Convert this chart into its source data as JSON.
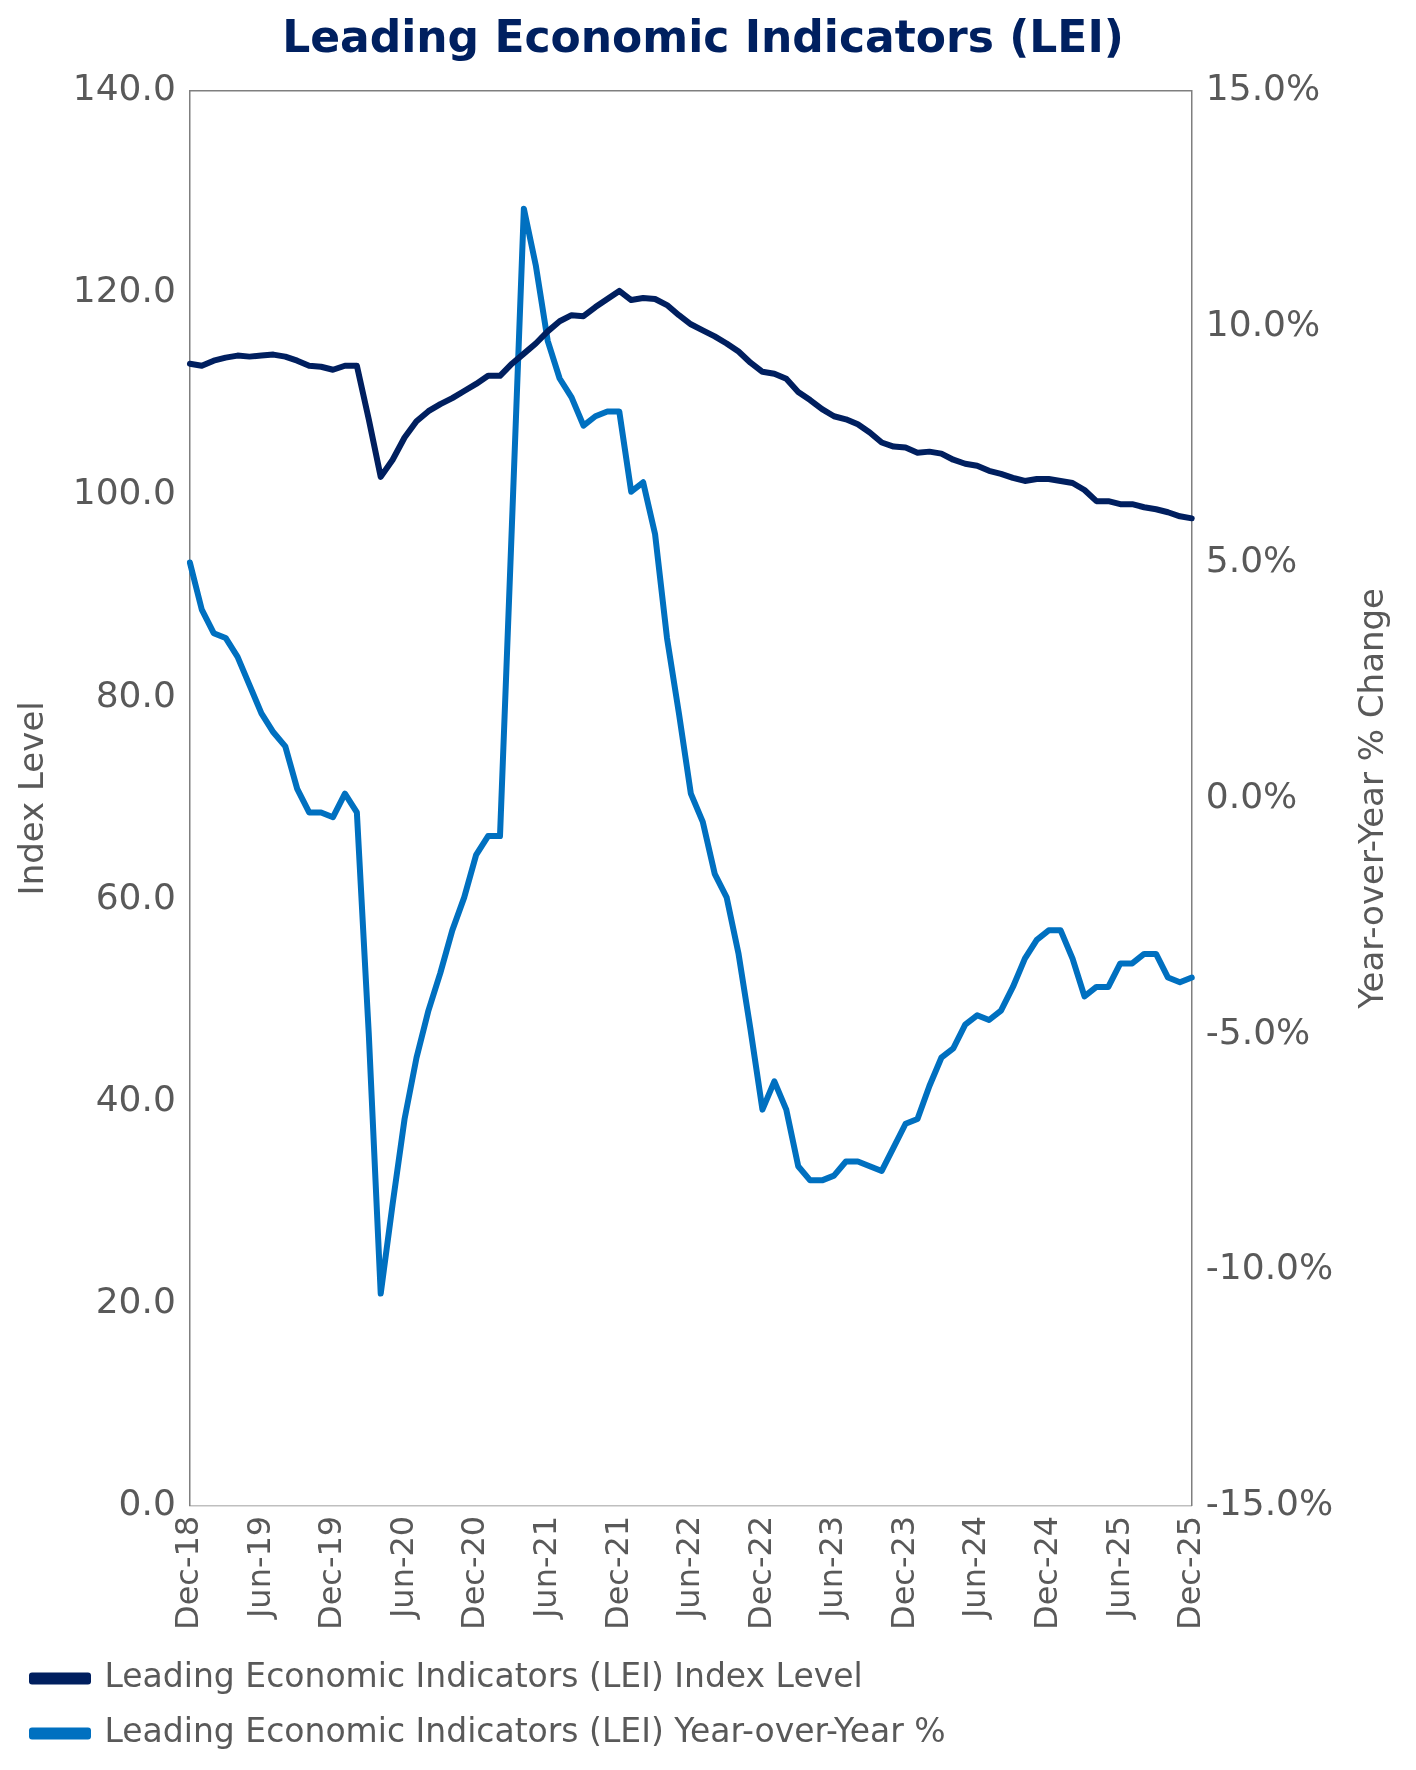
{
  "chart_data": {
    "type": "line",
    "title": "Leading Economic Indicators (LEI)",
    "ylabel": "Index Level",
    "y2label": "Year-over-Year % Change",
    "categories": [
      "Dec-18",
      null,
      null,
      null,
      null,
      null,
      "Jun-19",
      null,
      null,
      null,
      null,
      null,
      "Dec-19",
      null,
      null,
      null,
      null,
      null,
      "Jun-20",
      null,
      null,
      null,
      null,
      null,
      "Dec-20",
      null,
      null,
      null,
      null,
      null,
      "Jun-21",
      null,
      null,
      null,
      null,
      null,
      "Dec-21",
      null,
      null,
      null,
      null,
      null,
      "Jun-22",
      null,
      null,
      null,
      null,
      null,
      "Dec-22",
      null,
      null,
      null,
      null,
      null,
      "Jun-23",
      null,
      null,
      null,
      null,
      null,
      "Dec-23",
      null,
      null,
      null,
      null,
      null,
      "Jun-24",
      null,
      null,
      null,
      null,
      null,
      "Dec-24",
      null,
      null,
      null,
      null,
      null,
      "Jun-25",
      null,
      null,
      null,
      null,
      null,
      "Dec-25"
    ],
    "series": [
      {
        "name": "Leading Economic Indicators (LEI) Index Level",
        "color": "#001f5f",
        "values": [
          113.0,
          112.8,
          113.3,
          113.6,
          113.8,
          113.7,
          113.8,
          113.9,
          113.7,
          113.3,
          112.8,
          112.7,
          112.4,
          112.8,
          112.8,
          107.5,
          101.8,
          103.5,
          105.7,
          107.3,
          108.3,
          109.0,
          109.6,
          110.3,
          111.0,
          111.8,
          111.8,
          113.0,
          114.0,
          115.0,
          116.2,
          117.2,
          117.8,
          117.7,
          118.6,
          119.4,
          120.2,
          119.3,
          119.5,
          119.4,
          118.8,
          117.8,
          116.9,
          116.3,
          115.7,
          115.0,
          114.2,
          113.1,
          112.2,
          112.0,
          111.5,
          110.2,
          109.4,
          108.5,
          107.8,
          107.5,
          107.0,
          106.2,
          105.2,
          104.8,
          104.7,
          104.2,
          104.3,
          104.1,
          103.5,
          103.1,
          102.9,
          102.4,
          102.1,
          101.7,
          101.4,
          101.6,
          101.6,
          101.4,
          101.2,
          100.5,
          99.4,
          99.4,
          99.1,
          99.1,
          98.8,
          98.6,
          98.3,
          97.9,
          97.7
        ]
      },
      {
        "name": "Leading Economic Indicators (LEI) Year-over-Year %",
        "color": "#0070c0",
        "axis": "y2",
        "values": [
          5.0,
          4.0,
          3.5,
          3.4,
          3.0,
          2.4,
          1.8,
          1.4,
          1.1,
          0.2,
          -0.3,
          -0.3,
          -0.4,
          0.1,
          -0.3,
          -5.0,
          -10.5,
          -8.6,
          -6.8,
          -5.5,
          -4.5,
          -3.7,
          -2.8,
          -2.1,
          -1.2,
          -0.8,
          -0.8,
          5.8,
          12.5,
          11.3,
          9.7,
          8.9,
          8.5,
          7.9,
          8.1,
          8.2,
          8.2,
          6.5,
          6.7,
          5.6,
          3.4,
          1.8,
          0.1,
          -0.5,
          -1.6,
          -2.1,
          -3.3,
          -4.9,
          -6.6,
          -6.0,
          -6.6,
          -7.8,
          -8.1,
          -8.1,
          -8.0,
          -7.7,
          -7.7,
          -7.8,
          -7.9,
          -7.4,
          -6.9,
          -6.8,
          -6.1,
          -5.5,
          -5.3,
          -4.8,
          -4.6,
          -4.7,
          -4.5,
          -4.0,
          -3.4,
          -3.0,
          -2.8,
          -2.8,
          -3.4,
          -4.2,
          -4.0,
          -4.0,
          -3.5,
          -3.5,
          -3.3,
          -3.3,
          -3.8,
          -3.9,
          -3.8
        ]
      }
    ],
    "ylim": [
      0,
      140
    ],
    "yticks": [
      {
        "value": 0,
        "label": "0.0"
      },
      {
        "value": 20,
        "label": "20.0"
      },
      {
        "value": 40,
        "label": "40.0"
      },
      {
        "value": 60,
        "label": "60.0"
      },
      {
        "value": 80,
        "label": "80.0"
      },
      {
        "value": 100,
        "label": "100.0"
      },
      {
        "value": 120,
        "label": "120.0"
      },
      {
        "value": 140,
        "label": "140.0"
      }
    ],
    "y2lim": [
      -15,
      15
    ],
    "y2ticks": [
      {
        "value": -15,
        "label": "-15.0%"
      },
      {
        "value": -10,
        "label": "-10.0%"
      },
      {
        "value": -5,
        "label": "-5.0%"
      },
      {
        "value": 0,
        "label": "0.0%"
      },
      {
        "value": 5,
        "label": "5.0%"
      },
      {
        "value": 10,
        "label": "10.0%"
      },
      {
        "value": 15,
        "label": "15.0%"
      }
    ],
    "grid": false,
    "legend": "bottom",
    "marker": "none",
    "line_style": "solid"
  }
}
